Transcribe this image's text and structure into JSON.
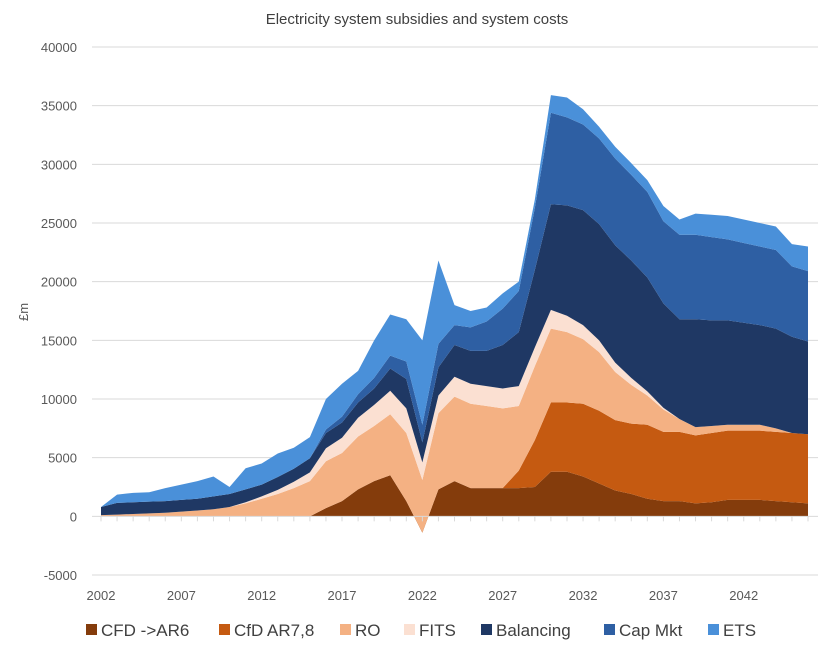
{
  "chart_data": {
    "type": "area",
    "stacked": true,
    "title": "Electricity system subsidies and system costs",
    "xlabel": "",
    "ylabel": "£m",
    "ylim": [
      -5000,
      40000
    ],
    "yticks": [
      -5000,
      0,
      5000,
      10000,
      15000,
      20000,
      25000,
      30000,
      35000,
      40000
    ],
    "ytick_labels": [
      "-5000",
      "0",
      "5000",
      "10000",
      "15000",
      "20000",
      "25000",
      "30000",
      "35000",
      "40000"
    ],
    "xlim": [
      2002,
      2046
    ],
    "xticks": [
      2002,
      2007,
      2012,
      2017,
      2022,
      2027,
      2032,
      2037,
      2042
    ],
    "xtick_labels": [
      "2002",
      "2007",
      "2012",
      "2017",
      "2022",
      "2027",
      "2032",
      "2037",
      "2042"
    ],
    "grid": true,
    "legend_position": "bottom",
    "x": [
      2002,
      2003,
      2004,
      2005,
      2006,
      2007,
      2008,
      2009,
      2010,
      2011,
      2012,
      2013,
      2014,
      2015,
      2016,
      2017,
      2018,
      2019,
      2020,
      2021,
      2022,
      2023,
      2024,
      2025,
      2026,
      2027,
      2028,
      2029,
      2030,
      2031,
      2032,
      2033,
      2034,
      2035,
      2036,
      2037,
      2038,
      2039,
      2040,
      2041,
      2042,
      2043,
      2044,
      2045,
      2046
    ],
    "series": [
      {
        "name": "CFD ->AR6",
        "color": "#843c0c",
        "values": [
          0,
          0,
          0,
          0,
          0,
          0,
          0,
          0,
          0,
          0,
          0,
          0,
          0,
          0,
          700,
          1300,
          2300,
          3000,
          3500,
          1300,
          -1400,
          2300,
          3000,
          2400,
          2400,
          2400,
          2400,
          2500,
          3800,
          3800,
          3400,
          2800,
          2200,
          1900,
          1500,
          1300,
          1300,
          1100,
          1200,
          1400,
          1400,
          1400,
          1300,
          1200,
          1100
        ]
      },
      {
        "name": "CfD AR7,8",
        "color": "#c55a11",
        "values": [
          0,
          0,
          0,
          0,
          0,
          0,
          0,
          0,
          0,
          0,
          0,
          0,
          0,
          0,
          0,
          0,
          0,
          0,
          0,
          0,
          0,
          0,
          0,
          0,
          0,
          0,
          1500,
          4000,
          5900,
          5900,
          6200,
          6200,
          6000,
          6000,
          6300,
          5900,
          5900,
          5800,
          5900,
          5900,
          5900,
          5900,
          5900,
          5900,
          5900
        ]
      },
      {
        "name": "RO",
        "color": "#f4b183",
        "values": [
          100,
          150,
          200,
          250,
          300,
          400,
          500,
          600,
          800,
          1100,
          1500,
          1900,
          2400,
          3000,
          4000,
          4100,
          4500,
          4700,
          5200,
          5800,
          4500,
          6500,
          7200,
          7200,
          7000,
          6800,
          5500,
          6300,
          6300,
          6000,
          5500,
          5000,
          4100,
          3300,
          2500,
          1900,
          1100,
          700,
          600,
          500,
          500,
          500,
          300,
          0,
          0
        ]
      },
      {
        "name": "FITS",
        "color": "#fbe0d2",
        "values": [
          0,
          0,
          0,
          0,
          0,
          0,
          0,
          0,
          0,
          100,
          200,
          350,
          550,
          750,
          1100,
          1300,
          1600,
          1800,
          2000,
          2100,
          1500,
          1500,
          1700,
          1700,
          1700,
          1700,
          1700,
          1600,
          1600,
          1400,
          1200,
          1000,
          800,
          600,
          350,
          150,
          0,
          0,
          0,
          0,
          0,
          0,
          0,
          0,
          0
        ]
      },
      {
        "name": "Balancing",
        "color": "#1f3864",
        "values": [
          700,
          1000,
          1000,
          1000,
          1000,
          1000,
          1000,
          1100,
          1100,
          1100,
          1000,
          1100,
          1100,
          1200,
          1300,
          1300,
          1300,
          1400,
          1900,
          2500,
          1700,
          2400,
          2700,
          2800,
          3000,
          3700,
          4600,
          6600,
          9000,
          9400,
          9800,
          9900,
          10000,
          10000,
          9700,
          8900,
          8500,
          9200,
          9000,
          8900,
          8700,
          8500,
          8500,
          8200,
          7900
        ]
      },
      {
        "name": "Cap Mkt",
        "color": "#2e5fa3",
        "values": [
          0,
          0,
          0,
          0,
          0,
          0,
          0,
          0,
          0,
          0,
          0,
          0,
          0,
          0,
          300,
          500,
          700,
          900,
          1100,
          1500,
          1500,
          2000,
          1700,
          2000,
          2500,
          3100,
          3500,
          5300,
          7800,
          7500,
          7300,
          7300,
          7400,
          7300,
          7300,
          7000,
          7200,
          7200,
          7100,
          6900,
          6800,
          6700,
          6700,
          6000,
          6000
        ]
      },
      {
        "name": "ETS",
        "color": "#4a90d9",
        "values": [
          0,
          700,
          800,
          800,
          1100,
          1300,
          1500,
          1700,
          600,
          1800,
          1800,
          2000,
          1800,
          1800,
          2600,
          2800,
          2000,
          3200,
          3500,
          3600,
          7200,
          7100,
          1700,
          1400,
          1200,
          1300,
          800,
          700,
          1500,
          1700,
          1300,
          1000,
          1000,
          1000,
          1000,
          1300,
          1300,
          1800,
          1900,
          2000,
          2000,
          2000,
          2000,
          1900,
          2100
        ]
      }
    ]
  }
}
